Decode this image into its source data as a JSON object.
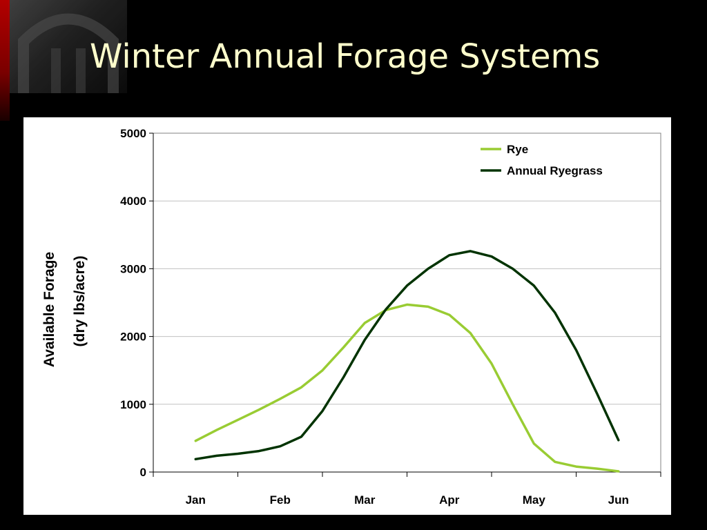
{
  "slide": {
    "title": "Winter Annual Forage Systems"
  },
  "chart_data": {
    "type": "line",
    "title": "",
    "xlabel": "",
    "ylabel": [
      "Available Forage",
      "(dry lbs/acre)"
    ],
    "categories": [
      "Jan",
      "Feb",
      "Mar",
      "Apr",
      "May",
      "Jun"
    ],
    "yticks": [
      0,
      1000,
      2000,
      3000,
      4000,
      5000
    ],
    "ylim": [
      0,
      5000
    ],
    "grid": true,
    "legend_position": "top-right",
    "series": [
      {
        "name": "Rye",
        "color": "#99cc33",
        "points": [
          [
            1.0,
            460
          ],
          [
            1.25,
            620
          ],
          [
            1.5,
            770
          ],
          [
            1.75,
            920
          ],
          [
            2.0,
            1080
          ],
          [
            2.25,
            1250
          ],
          [
            2.5,
            1500
          ],
          [
            2.75,
            1840
          ],
          [
            3.0,
            2200
          ],
          [
            3.25,
            2390
          ],
          [
            3.5,
            2470
          ],
          [
            3.75,
            2440
          ],
          [
            4.0,
            2320
          ],
          [
            4.25,
            2050
          ],
          [
            4.5,
            1600
          ],
          [
            4.75,
            1000
          ],
          [
            5.0,
            420
          ],
          [
            5.25,
            150
          ],
          [
            5.5,
            80
          ],
          [
            5.75,
            50
          ],
          [
            6.0,
            10
          ]
        ]
      },
      {
        "name": "Annual Ryegrass",
        "color": "#003300",
        "points": [
          [
            1.0,
            190
          ],
          [
            1.25,
            240
          ],
          [
            1.5,
            270
          ],
          [
            1.75,
            310
          ],
          [
            2.0,
            380
          ],
          [
            2.25,
            520
          ],
          [
            2.5,
            900
          ],
          [
            2.75,
            1400
          ],
          [
            3.0,
            1950
          ],
          [
            3.25,
            2400
          ],
          [
            3.5,
            2750
          ],
          [
            3.75,
            3000
          ],
          [
            4.0,
            3200
          ],
          [
            4.25,
            3260
          ],
          [
            4.5,
            3180
          ],
          [
            4.75,
            3000
          ],
          [
            5.0,
            2750
          ],
          [
            5.25,
            2350
          ],
          [
            5.5,
            1800
          ],
          [
            5.75,
            1150
          ],
          [
            6.0,
            470
          ]
        ]
      }
    ]
  }
}
